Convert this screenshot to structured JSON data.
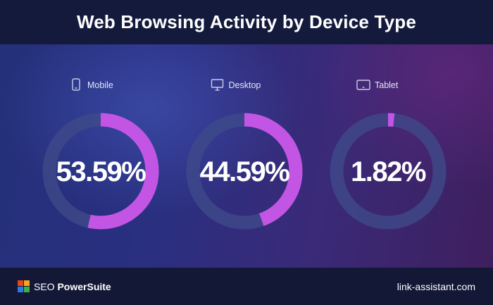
{
  "header": {
    "title": "Web Browsing Activity by Device Type"
  },
  "chart_data": {
    "type": "pie",
    "title": "Web Browsing Activity by Device Type",
    "categories": [
      "Mobile",
      "Desktop",
      "Tablet"
    ],
    "values": [
      53.59,
      44.59,
      1.82
    ],
    "value_labels": [
      "53.59%",
      "44.59%",
      "1.82%"
    ],
    "icons": [
      "phone-icon",
      "monitor-icon",
      "tablet-icon"
    ],
    "colors": {
      "arc": "#c255e3",
      "track": "#3e4a8a"
    }
  },
  "footer": {
    "brand_prefix": "SEO ",
    "brand_bold": "PowerSuite",
    "site": "link-assistant.com",
    "logo_colors": [
      "#e8461f",
      "#f6a623",
      "#2b7be4",
      "#3fae49"
    ]
  }
}
